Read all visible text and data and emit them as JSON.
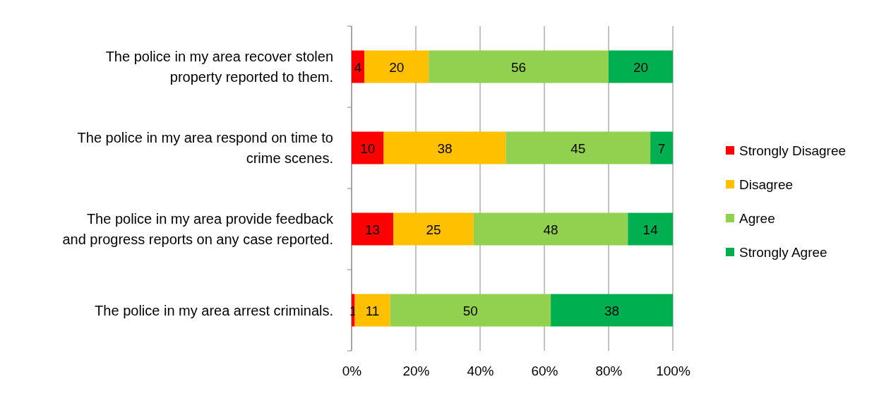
{
  "chart_data": {
    "type": "bar",
    "orientation": "horizontal",
    "stacked": true,
    "categories": [
      "The police in my area recover stolen property reported to them.",
      "The police in my area respond on time to crime scenes.",
      "The police in my area provide feedback and progress reports on any case reported.",
      "The police in my area arrest criminals."
    ],
    "series": [
      {
        "name": "Strongly Disagree",
        "color": "#ff0000",
        "values": [
          4,
          10,
          13,
          1
        ]
      },
      {
        "name": "Disagree",
        "color": "#ffc000",
        "values": [
          20,
          38,
          25,
          11
        ]
      },
      {
        "name": "Agree",
        "color": "#92d050",
        "values": [
          56,
          45,
          48,
          50
        ]
      },
      {
        "name": "Strongly Agree",
        "color": "#00b050",
        "values": [
          20,
          7,
          14,
          38
        ]
      }
    ],
    "xlim": [
      0,
      100
    ],
    "xticks": [
      {
        "value": 0,
        "label": "0%"
      },
      {
        "value": 20,
        "label": "20%"
      },
      {
        "value": 40,
        "label": "40%"
      },
      {
        "value": 60,
        "label": "60%"
      },
      {
        "value": 80,
        "label": "80%"
      },
      {
        "value": 100,
        "label": "100%"
      }
    ],
    "grid": "x",
    "legend": "right",
    "data_labels": true
  }
}
